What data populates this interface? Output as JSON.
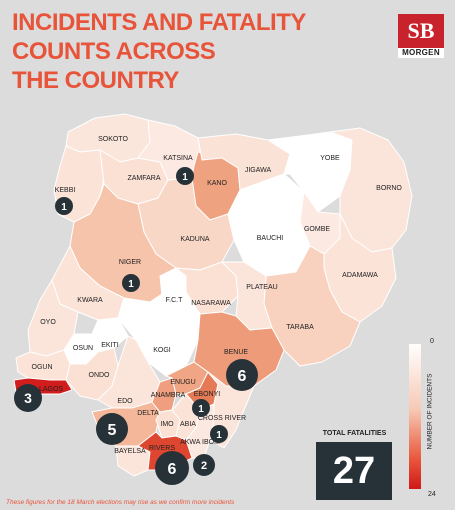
{
  "title_lines": [
    "INCIDENTS AND FATALITY",
    "COUNTS ACROSS",
    "THE COUNTRY"
  ],
  "logo": {
    "mark": "SB",
    "word": "MORGEN",
    "color": "#c8232c"
  },
  "legend": {
    "title": "NUMBER OF INCIDENTS",
    "min": "0",
    "max": "24",
    "scale_colors": [
      "#ffffff",
      "#d01818"
    ]
  },
  "total_fatalities": {
    "label": "TOTAL FATALITIES",
    "value": "27"
  },
  "footnote": "These figures for the 18 March elections may rise as we confirm more incidents",
  "states": [
    "SOKOTO",
    "KATSINA",
    "YOBE",
    "ZAMFARA",
    "KANO",
    "JIGAWA",
    "BORNO",
    "KEBBI",
    "KADUNA",
    "BAUCHI",
    "GOMBE",
    "NIGER",
    "ADAMAWA",
    "F.C.T",
    "PLATEAU",
    "KWARA",
    "NASARAWA",
    "OYO",
    "TARABA",
    "OSUN",
    "EKITI",
    "KOGI",
    "BENUE",
    "OGUN",
    "ONDO",
    "LAGOS",
    "ENUGU",
    "ANAMBRA",
    "EBONYI",
    "EDO",
    "DELTA",
    "CROSS RIVER",
    "IMO",
    "ABIA",
    "AKWA IBOM",
    "BAYELSA",
    "RIVERS"
  ],
  "fatality_bubbles": [
    {
      "state": "KATSINA",
      "value": "1"
    },
    {
      "state": "KEBBI",
      "value": "1"
    },
    {
      "state": "NIGER",
      "value": "1"
    },
    {
      "state": "BENUE",
      "value": "6"
    },
    {
      "state": "LAGOS",
      "value": "3"
    },
    {
      "state": "EBONYI",
      "value": "1"
    },
    {
      "state": "CROSS RIVER",
      "value": "1"
    },
    {
      "state": "DELTA",
      "value": "5"
    },
    {
      "state": "AKWA IBOM",
      "value": "2"
    },
    {
      "state": "RIVERS",
      "value": "6"
    }
  ]
}
